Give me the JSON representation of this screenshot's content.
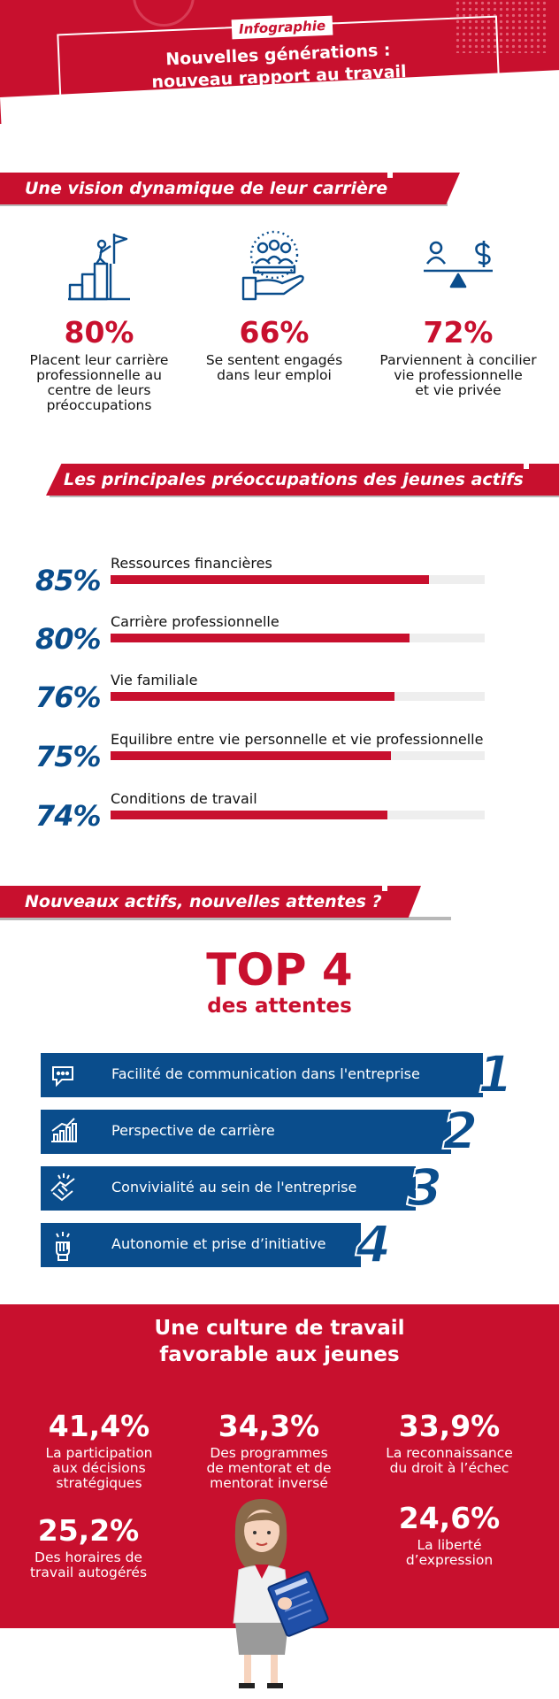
{
  "header": {
    "tag": "Infographie",
    "title_line1": "Nouvelles générations :",
    "title_line2": "nouveau rapport au travail"
  },
  "section1": {
    "title": "Une vision dynamique de leur carrière",
    "stats": [
      {
        "icon": "summit-flag-icon",
        "pct": "80%",
        "l1": "Placent leur carrière",
        "l2": "professionnelle au",
        "l3": "centre de leurs",
        "l4": "préoccupations"
      },
      {
        "icon": "engaged-team-icon",
        "pct": "66%",
        "l1": "Se sentent engagés",
        "l2": "dans leur emploi"
      },
      {
        "icon": "balance-scale-icon",
        "pct": "72%",
        "l1": "Parviennent à concilier",
        "l2": "vie professionnelle",
        "l3": "et vie privée"
      }
    ]
  },
  "section2": {
    "title": "Les principales préoccupations des jeunes actifs",
    "bars": [
      {
        "pct": "85%",
        "label": "Ressources financières",
        "value": 85
      },
      {
        "pct": "80%",
        "label": "Carrière professionnelle",
        "value": 80
      },
      {
        "pct": "76%",
        "label": "Vie familiale",
        "value": 76
      },
      {
        "pct": "75%",
        "label": "Equilibre entre vie personnelle et vie professionnelle",
        "value": 75
      },
      {
        "pct": "74%",
        "label": "Conditions de travail",
        "value": 74
      }
    ]
  },
  "section3": {
    "title": "Nouveaux actifs, nouvelles attentes ?",
    "top_title": "TOP 4",
    "top_sub": "des attentes",
    "items": [
      {
        "rank": "1",
        "icon": "speech-bubble-icon",
        "label": "Facilité de communication dans l'entreprise"
      },
      {
        "rank": "2",
        "icon": "growth-chart-icon",
        "label": "Perspective de carrière"
      },
      {
        "rank": "3",
        "icon": "handshake-icon",
        "label": "Convivialité au sein de l'entreprise"
      },
      {
        "rank": "4",
        "icon": "raised-fist-icon",
        "label": "Autonomie et prise d’initiative"
      }
    ]
  },
  "culture": {
    "title_line1": "Une culture de travail",
    "title_line2": "favorable aux jeunes",
    "stats": [
      {
        "pct": "41,4%",
        "l1": "La participation",
        "l2": "aux décisions",
        "l3": "stratégiques"
      },
      {
        "pct": "34,3%",
        "l1": "Des programmes",
        "l2": "de mentorat et de",
        "l3": "mentorat inversé"
      },
      {
        "pct": "33,9%",
        "l1": "La reconnaissance",
        "l2": "du droit à l’échec"
      },
      {
        "pct": "25,2%",
        "l1": "Des horaires de",
        "l2": "travail autogérés"
      },
      {
        "pct": "24,6%",
        "l1": "La liberté",
        "l2": "d’expression"
      }
    ]
  },
  "colors": {
    "red": "#c8102e",
    "blue": "#0a4d8c",
    "track": "#eeeeee"
  }
}
